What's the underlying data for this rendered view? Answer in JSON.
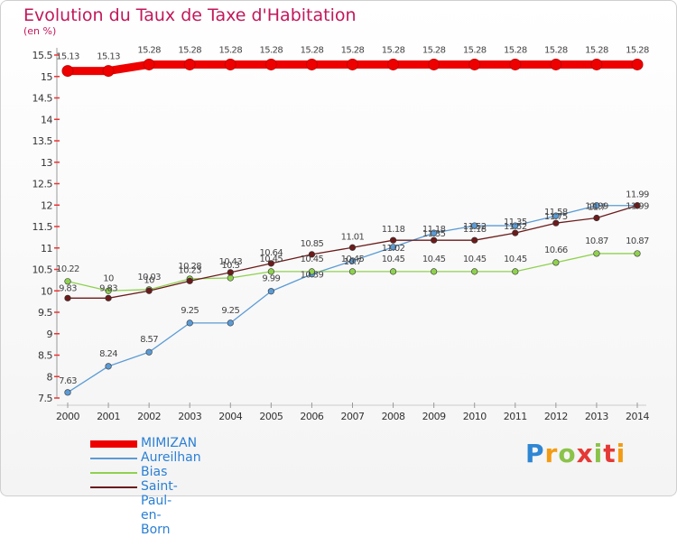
{
  "header": {
    "title": "Evolution du Taux de Taxe d'Habitation",
    "unit": "(en %)"
  },
  "logo": {
    "text": "Proxiti"
  },
  "chart_data": {
    "type": "line",
    "title": "Evolution du Taux de Taxe d'Habitation",
    "ylabel": "(en %)",
    "ylim": [
      7.5,
      15.5
    ],
    "yticks": [
      7.5,
      8,
      8.5,
      9,
      9.5,
      10,
      10.5,
      11,
      11.5,
      12,
      12.5,
      13,
      13.5,
      14,
      14.5,
      15,
      15.5
    ],
    "x": [
      "2000",
      "2001",
      "2002",
      "2003",
      "2004",
      "2005",
      "2006",
      "2007",
      "2008",
      "2009",
      "2010",
      "2011",
      "2012",
      "2013",
      "2014"
    ],
    "legend_position": "bottom-left",
    "series": [
      {
        "name": "MIMIZAN",
        "color": "#ee0000",
        "values": [
          15.13,
          15.13,
          15.28,
          15.28,
          15.28,
          15.28,
          15.28,
          15.28,
          15.28,
          15.28,
          15.28,
          15.28,
          15.28,
          15.28,
          15.28
        ]
      },
      {
        "name": "Aureilhan",
        "color": "#5b9bd5",
        "values": [
          7.63,
          8.24,
          8.57,
          9.25,
          9.25,
          9.99,
          10.39,
          10.7,
          11.02,
          11.35,
          11.52,
          11.52,
          11.75,
          11.99,
          11.99
        ]
      },
      {
        "name": "Bias",
        "color": "#8fd14f",
        "values": [
          10.22,
          10,
          10.03,
          10.28,
          10.3,
          10.45,
          10.45,
          10.45,
          10.45,
          10.45,
          10.45,
          10.45,
          10.66,
          10.87,
          10.87
        ]
      },
      {
        "name": "Saint-Paul-en-Born",
        "color": "#6b1b1b",
        "values": [
          9.83,
          9.83,
          10,
          10.23,
          10.43,
          10.64,
          10.85,
          11.01,
          11.18,
          11.18,
          11.18,
          11.35,
          11.58,
          11.7,
          11.99
        ]
      }
    ]
  }
}
